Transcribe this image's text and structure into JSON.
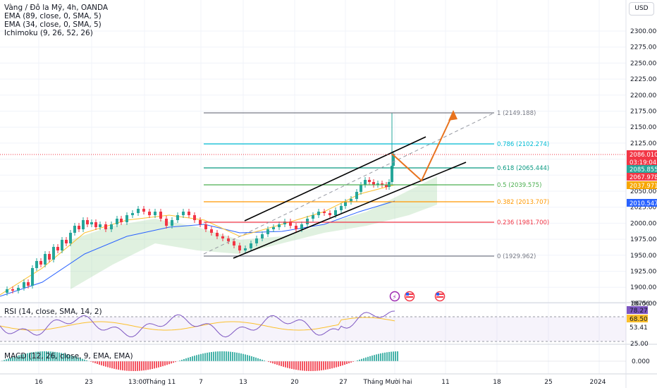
{
  "header": {
    "title": "Vàng / Đô la Mỹ, 4h, OANDA",
    "indicators": [
      "EMA (89, close, 0, SMA, 5)",
      "EMA (34, close, 0, SMA, 5)",
      "Ichimoku (9, 26, 52, 26)"
    ],
    "currency_button": "USD"
  },
  "price_axis": {
    "ticks": [
      "2300.000",
      "2275.000",
      "2250.000",
      "2225.000",
      "2200.000",
      "2175.000",
      "2150.000",
      "2125.000",
      "2100.000",
      "2075.000",
      "2050.000",
      "2025.000",
      "2000.000",
      "1975.000",
      "1950.000",
      "1925.000",
      "1900.000",
      "1875.000"
    ],
    "badges": [
      {
        "text": "2086.010",
        "color": "#f23645"
      },
      {
        "text": "03:19:04",
        "color": "#f23645"
      },
      {
        "text": "2085.855",
        "color": "#26a69a"
      },
      {
        "text": "2067.978",
        "color": "#f23645"
      },
      {
        "text": "2037.971",
        "color": "#f7a600"
      },
      {
        "text": "2010.547",
        "color": "#2962ff"
      }
    ]
  },
  "fib_levels": [
    {
      "label": "1 (2149.188)",
      "color": "#787b86"
    },
    {
      "label": "0.786 (2102.274)",
      "color": "#00bcd4"
    },
    {
      "label": "0.618 (2065.444)",
      "color": "#089981"
    },
    {
      "label": "0.5 (2039.575)",
      "color": "#4caf50"
    },
    {
      "label": "0.382 (2013.707)",
      "color": "#ff9800"
    },
    {
      "label": "0.236 (1981.700)",
      "color": "#f23645"
    },
    {
      "label": "0 (1929.962)",
      "color": "#787b86"
    }
  ],
  "rsi": {
    "legend": "RSI (14, close, SMA, 14, 2)",
    "top_value": "86.06",
    "badges": [
      {
        "text": "78.27",
        "color": "#7e57c2",
        "text_color": "#ffffff"
      },
      {
        "text": "68.50",
        "color": "#fbc02d",
        "text_color": "#131722"
      },
      {
        "text": "53.41",
        "color": "#ffffff",
        "text_color": "#131722"
      }
    ],
    "bottom_value": "25.00"
  },
  "macd": {
    "legend": "MACD (12, 26, close, 9, EMA, EMA)",
    "axis_value": "0.000"
  },
  "time_axis": {
    "labels": [
      "16",
      "23",
      "13:00",
      "Tháng 11",
      "7",
      "13",
      "20",
      "27",
      "Tháng Mười hai",
      "11",
      "18",
      "25",
      "2024"
    ]
  },
  "colors": {
    "up": "#26a69a",
    "down": "#f23645",
    "ema89": "#2962ff",
    "ema34": "#fbc02d",
    "projection": "#e8731e",
    "rsi": "#7e57c2"
  },
  "event_icons": [
    "flash-icon",
    "us-flag-icon",
    "us-flag-icon"
  ]
}
